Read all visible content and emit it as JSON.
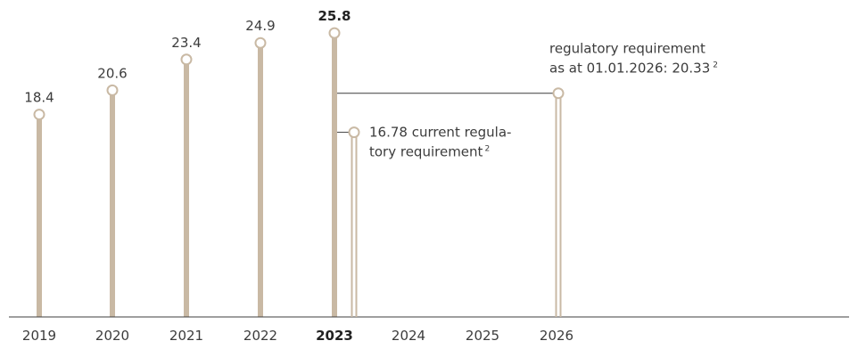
{
  "chart_data": {
    "type": "bar",
    "categories": [
      "2019",
      "2020",
      "2021",
      "2022",
      "2023",
      "2024",
      "2025",
      "2026"
    ],
    "highlight_category": "2023",
    "series": [
      {
        "values": [
          18.4,
          20.6,
          23.4,
          24.9,
          25.8,
          null,
          null,
          null
        ],
        "labels": [
          "18.4",
          "20.6",
          "23.4",
          "24.9",
          "25.8",
          "",
          "",
          ""
        ]
      }
    ],
    "requirements": [
      {
        "category": "2023",
        "value": 16.78,
        "text_line1": "16.78 current regula-",
        "text_line2": "tory requirement",
        "footnote": "2"
      },
      {
        "category": "2026",
        "value": 20.33,
        "text_line1": "regulatory requirement",
        "text_line2": "as at 01.01.2026: 20.33",
        "footnote": "2"
      }
    ],
    "ylim": [
      0,
      27
    ],
    "colors": {
      "bar": "#c9b9a4",
      "axis": "#3c3c3c",
      "text": "#3c3c3c",
      "connector": "#3c3c3c"
    }
  }
}
